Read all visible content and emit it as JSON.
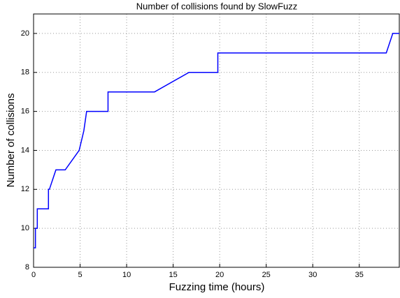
{
  "chart_data": {
    "type": "line",
    "title": "Number of collisions found by SlowFuzz",
    "x_label": "Fuzzing time (hours)",
    "y_label": "Number of collisions",
    "x": [
      0,
      0.2,
      0.2,
      0.4,
      0.4,
      1.6,
      1.6,
      1.7,
      2.4,
      3.4,
      4.9,
      5.4,
      5.7,
      8.0,
      8.0,
      13.0,
      16.7,
      19.8,
      19.8,
      37.9,
      38.6,
      39.3
    ],
    "series": [
      {
        "name": "SlowFuzz",
        "color": "#0000ff",
        "values": [
          9,
          9,
          10,
          10,
          11,
          11,
          12,
          12,
          13,
          13,
          14,
          15,
          16,
          16,
          17,
          17,
          18,
          18,
          19,
          19,
          20,
          20
        ]
      }
    ],
    "xlim": [
      0,
      39.3
    ],
    "ylim": [
      8,
      21
    ],
    "xticks": [
      0,
      5,
      10,
      15,
      20,
      25,
      30,
      35
    ],
    "yticks": [
      8,
      10,
      12,
      14,
      16,
      18,
      20
    ],
    "grid": true
  }
}
